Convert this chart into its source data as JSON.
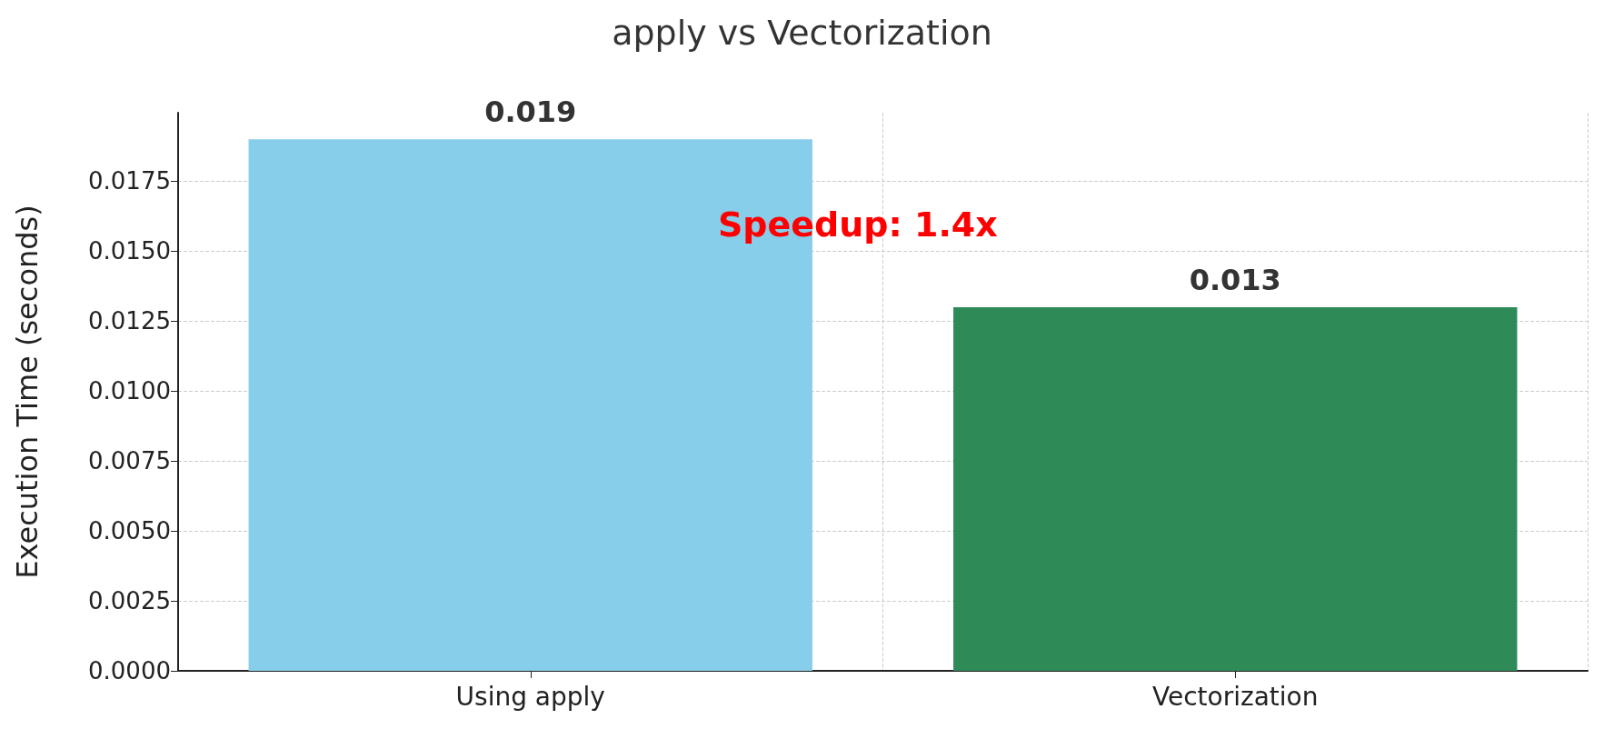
{
  "chart_data": {
    "type": "bar",
    "title": "apply vs Vectorization",
    "ylabel": "Execution Time (seconds)",
    "categories": [
      "Using apply",
      "Vectorization"
    ],
    "values": [
      0.019,
      0.013
    ],
    "colors": [
      "#87ceeb",
      "#2e8b57"
    ],
    "data_labels": true,
    "ylim": [
      0,
      0.01995
    ],
    "yticks": [
      {
        "value": 0,
        "label": "0.0000"
      },
      {
        "value": 0.0025,
        "label": "0.0025"
      },
      {
        "value": 0.005,
        "label": "0.0050"
      },
      {
        "value": 0.0075,
        "label": "0.0075"
      },
      {
        "value": 0.01,
        "label": "0.0100"
      },
      {
        "value": 0.0125,
        "label": "0.0125"
      },
      {
        "value": 0.015,
        "label": "0.0150"
      },
      {
        "value": 0.0175,
        "label": "0.0175"
      }
    ],
    "grid": true,
    "annotations": [
      "Speedup: 1.4x"
    ]
  }
}
